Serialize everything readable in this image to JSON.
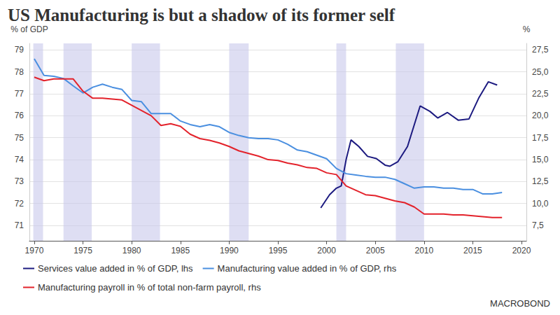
{
  "chart_data": {
    "type": "line",
    "title": "US Manufacturing is but a shadow of its former self",
    "ylabel": "% of GDP",
    "y2label": "%",
    "credit": "MACROBOND",
    "xlim": [
      1969.5,
      2020.5
    ],
    "xticks": [
      1970,
      1975,
      1980,
      1985,
      1990,
      1995,
      2000,
      2005,
      2010,
      2015,
      2020
    ],
    "ylim": [
      70.3,
      79.3
    ],
    "yticks": [
      71,
      72,
      73,
      74,
      75,
      76,
      77,
      78,
      79
    ],
    "y2lim": [
      5.75,
      28.25
    ],
    "y2ticks": [
      {
        "value": 7.5,
        "label": "7,5"
      },
      {
        "value": 10,
        "label": "10,0"
      },
      {
        "value": 12.5,
        "label": "12,5"
      },
      {
        "value": 15,
        "label": "15,0"
      },
      {
        "value": 17.5,
        "label": "17,5"
      },
      {
        "value": 20,
        "label": "20,0"
      },
      {
        "value": 22.5,
        "label": "22,5"
      },
      {
        "value": 25,
        "label": "25,0"
      },
      {
        "value": 27.5,
        "label": "27,5"
      }
    ],
    "grid": true,
    "legend": "bottom",
    "shaded_periods": [
      [
        1969.9,
        1970.9
      ],
      [
        1973.0,
        1975.9
      ],
      [
        1980.0,
        1982.9
      ],
      [
        1990.0,
        1992.0
      ],
      [
        2001.0,
        2002.0
      ],
      [
        2007.1,
        2010.0
      ]
    ],
    "series": [
      {
        "name": "Services value added in % of GDP, lhs",
        "color": "#1c1a80",
        "axis": "y",
        "x": [
          1999.4,
          2000.3,
          2001.0,
          2001.5,
          2002.0,
          2002.5,
          2003.3,
          2004.2,
          2005.1,
          2006.0,
          2006.5,
          2007.3,
          2008.3,
          2009.6,
          2010.6,
          2011.4,
          2012.4,
          2013.5,
          2014.6,
          2015.6,
          2016.6,
          2017.5
        ],
        "values": [
          71.8,
          72.4,
          72.7,
          72.8,
          74.0,
          74.9,
          74.6,
          74.15,
          74.05,
          73.75,
          73.7,
          73.9,
          74.6,
          76.45,
          76.2,
          75.9,
          76.15,
          75.8,
          75.85,
          76.8,
          77.55,
          77.4
        ]
      },
      {
        "name": "Manufacturing value added in % of GDP, rhs",
        "color": "#4a8fe0",
        "axis": "y2",
        "x": [
          1970,
          1971,
          1972,
          1973,
          1974,
          1975,
          1976,
          1977,
          1978,
          1979,
          1980,
          1981,
          1982,
          1983,
          1984,
          1985,
          1986,
          1987,
          1988,
          1989,
          1990,
          1991,
          1992,
          1993,
          1994,
          1995,
          1996,
          1997,
          1998,
          1999,
          2000,
          2001,
          2002,
          2003,
          2004,
          2005,
          2006,
          2007,
          2008,
          2009,
          2010,
          2011,
          2012,
          2013,
          2014,
          2015,
          2016,
          2017,
          2018
        ],
        "values": [
          26.5,
          24.6,
          24.5,
          24.25,
          23.4,
          22.6,
          23.25,
          23.6,
          23.25,
          23.0,
          21.75,
          21.6,
          20.25,
          20.25,
          20.25,
          19.4,
          19.0,
          18.75,
          19.0,
          18.75,
          18.1,
          17.75,
          17.5,
          17.4,
          17.4,
          17.25,
          16.75,
          16.1,
          15.9,
          15.5,
          15.1,
          14.0,
          13.4,
          13.25,
          13.1,
          13.0,
          13.0,
          12.75,
          12.25,
          11.75,
          11.9,
          11.9,
          11.75,
          11.75,
          11.6,
          11.6,
          11.1,
          11.1,
          11.25
        ]
      },
      {
        "name": "Manufacturing payroll in % of total non-farm payroll, rhs",
        "color": "#e3222b",
        "axis": "y2",
        "x": [
          1970,
          1971,
          1972,
          1973,
          1974,
          1975,
          1976,
          1977,
          1978,
          1979,
          1980,
          1981,
          1982,
          1983,
          1984,
          1985,
          1986,
          1987,
          1988,
          1989,
          1990,
          1991,
          1992,
          1993,
          1994,
          1995,
          1996,
          1997,
          1998,
          1999,
          2000,
          2001,
          2002,
          2003,
          2004,
          2005,
          2006,
          2007,
          2008,
          2009,
          2010,
          2011,
          2012,
          2013,
          2014,
          2015,
          2016,
          2017,
          2018
        ],
        "values": [
          24.4,
          24.0,
          24.2,
          24.2,
          24.2,
          22.8,
          22.0,
          22.0,
          21.9,
          21.8,
          21.2,
          20.6,
          20.0,
          18.9,
          19.1,
          18.8,
          17.9,
          17.4,
          17.2,
          16.9,
          16.5,
          16.0,
          15.7,
          15.4,
          15.0,
          14.9,
          14.6,
          14.4,
          14.1,
          14.0,
          13.5,
          13.3,
          12.0,
          11.5,
          11.0,
          10.9,
          10.6,
          10.3,
          10.1,
          9.6,
          8.8,
          8.8,
          8.8,
          8.7,
          8.7,
          8.6,
          8.5,
          8.4,
          8.4
        ]
      }
    ]
  }
}
